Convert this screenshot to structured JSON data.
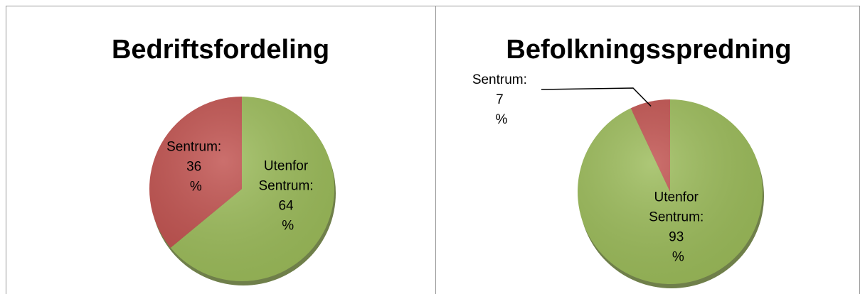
{
  "chart_data": [
    {
      "type": "pie",
      "title": "Bedriftsfordeling",
      "categories": [
        "Utenfor Sentrum:",
        "Sentrum:"
      ],
      "values": [
        64,
        36
      ],
      "value_labels": [
        "64 %",
        "36 %"
      ],
      "colors": [
        "#9bbb59",
        "#c0504d"
      ]
    },
    {
      "type": "pie",
      "title": "Befolkningsspredning",
      "categories": [
        "Utenfor Sentrum:",
        "Sentrum:"
      ],
      "values": [
        93,
        7
      ],
      "value_labels": [
        "93 %",
        "7 %"
      ],
      "colors": [
        "#9bbb59",
        "#c0504d"
      ]
    }
  ]
}
